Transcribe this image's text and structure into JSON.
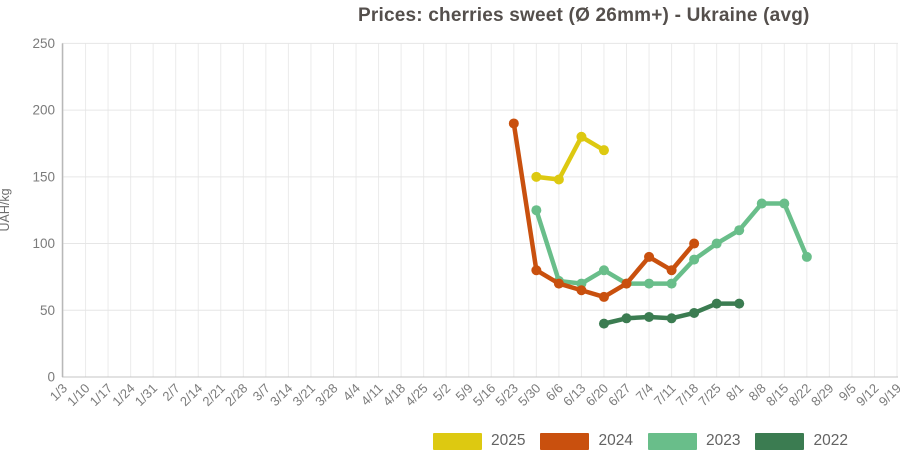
{
  "chart_data": {
    "type": "line",
    "title": "Prices: cherries sweet (Ø 26mm+) - Ukraine (avg)",
    "ylabel": "UAH/kg",
    "xlabel": "",
    "ylim": [
      0,
      250
    ],
    "yticks": [
      0,
      50,
      100,
      150,
      200,
      250
    ],
    "grid": true,
    "legend_position": "bottom",
    "categories": [
      "1/3",
      "1/10",
      "1/17",
      "1/24",
      "1/31",
      "2/7",
      "2/14",
      "2/21",
      "2/28",
      "3/7",
      "3/14",
      "3/21",
      "3/28",
      "4/4",
      "4/11",
      "4/18",
      "4/25",
      "5/2",
      "5/9",
      "5/16",
      "5/23",
      "5/30",
      "6/6",
      "6/13",
      "6/20",
      "6/27",
      "7/4",
      "7/11",
      "7/18",
      "7/25",
      "8/1",
      "8/8",
      "8/15",
      "8/22",
      "8/29",
      "9/5",
      "9/12",
      "9/19"
    ],
    "series": [
      {
        "name": "2025",
        "color": "#ddc911",
        "start_index": 21,
        "x": [
          "5/30",
          "6/6",
          "6/13",
          "6/20"
        ],
        "values": [
          150,
          148,
          180,
          170
        ]
      },
      {
        "name": "2024",
        "color": "#c9500e",
        "start_index": 20,
        "x": [
          "5/23",
          "5/30",
          "6/6",
          "6/13",
          "6/20",
          "6/27",
          "7/4",
          "7/11",
          "7/18"
        ],
        "values": [
          190,
          80,
          70,
          65,
          60,
          70,
          90,
          80,
          100
        ]
      },
      {
        "name": "2023",
        "color": "#69be8a",
        "start_index": 21,
        "x": [
          "5/30",
          "6/6",
          "6/13",
          "6/20",
          "6/27",
          "7/4",
          "7/11",
          "7/18",
          "7/25",
          "8/1",
          "8/8",
          "8/15",
          "8/22"
        ],
        "values": [
          125,
          72,
          70,
          80,
          70,
          70,
          70,
          88,
          100,
          110,
          130,
          130,
          90
        ]
      },
      {
        "name": "2022",
        "color": "#3b7c51",
        "start_index": 24,
        "x": [
          "6/20",
          "6/27",
          "7/4",
          "7/11",
          "7/18",
          "7/25",
          "8/1"
        ],
        "values": [
          40,
          44,
          45,
          44,
          48,
          55,
          55
        ]
      }
    ],
    "colors": {
      "grid_vertical": "#ebebeb",
      "grid_horizontal": "#e6e6e6",
      "axis_line": "#b8b8b8",
      "baseline": "#c4c4c4",
      "tick_label": "#7b7b7b",
      "title_text": "#544f4c"
    }
  }
}
